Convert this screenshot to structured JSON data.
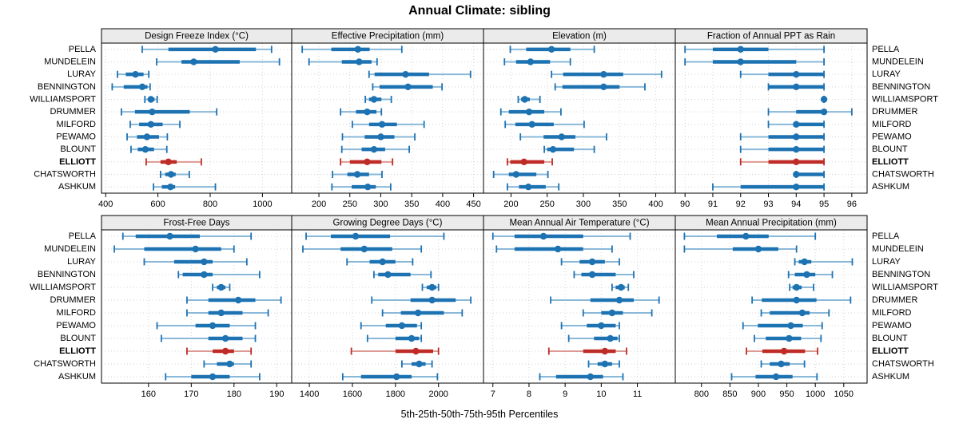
{
  "title": "Annual Climate: sibling",
  "caption": "5th-25th-50th-75th-95th Percentiles",
  "percentile_labels": [
    "5th",
    "25th",
    "50th",
    "75th",
    "95th"
  ],
  "highlight_site": "ELLIOTT",
  "sites": [
    "PELLA",
    "MUNDELEIN",
    "LURAY",
    "BENNINGTON",
    "WILLIAMSPORT",
    "DRUMMER",
    "MILFORD",
    "PEWAMO",
    "BLOUNT",
    "ELLIOTT",
    "CHATSWORTH",
    "ASHKUM"
  ],
  "colors": {
    "blue": "#1d72b2",
    "blue_light": "#8ab8d9",
    "red": "#bf2b26",
    "red_light": "#dd9a93",
    "grid": "#d4d4d4",
    "header_bg": "#ebebeb",
    "border": "#000000"
  },
  "chart_data": [
    {
      "type": "dotplot-percentiles",
      "title": "Design Freeze Index (°C)",
      "xlim": [
        384,
        1112
      ],
      "ticks": [
        400,
        600,
        800,
        1000
      ],
      "values": {
        "PELLA": [
          540,
          640,
          820,
          975,
          1035
        ],
        "MUNDELEIN": [
          595,
          690,
          737,
          913,
          1065
        ],
        "LURAY": [
          445,
          477,
          514,
          545,
          565
        ],
        "BENNINGTON": [
          425,
          469,
          540,
          560,
          570
        ],
        "WILLIAMSPORT": [
          550,
          562,
          573,
          587,
          597
        ],
        "DRUMMER": [
          460,
          512,
          578,
          722,
          825
        ],
        "MILFORD": [
          494,
          528,
          573,
          618,
          684
        ],
        "PEWAMO": [
          482,
          520,
          558,
          604,
          636
        ],
        "BLOUNT": [
          497,
          523,
          552,
          585,
          634
        ],
        "ELLIOTT": [
          555,
          610,
          640,
          672,
          766
        ],
        "CHATSWORTH": [
          610,
          628,
          650,
          668,
          720
        ],
        "ASHKUM": [
          583,
          615,
          648,
          666,
          820
        ]
      }
    },
    {
      "type": "dotplot-percentiles",
      "title": "Effective Precipitation (mm)",
      "xlim": [
        156,
        466
      ],
      "ticks": [
        200,
        250,
        300,
        350,
        400,
        450
      ],
      "values": {
        "PELLA": [
          173,
          220,
          263,
          282,
          334
        ],
        "MUNDELEIN": [
          184,
          237,
          265,
          285,
          294
        ],
        "LURAY": [
          281,
          290,
          340,
          378,
          445
        ],
        "BENNINGTON": [
          287,
          298,
          344,
          384,
          399
        ],
        "WILLIAMSPORT": [
          275,
          281,
          289,
          301,
          317
        ],
        "DRUMMER": [
          235,
          260,
          278,
          293,
          301
        ],
        "MILFORD": [
          254,
          281,
          302,
          326,
          370
        ],
        "PEWAMO": [
          238,
          274,
          300,
          322,
          355
        ],
        "BLOUNT": [
          237,
          269,
          289,
          307,
          346
        ],
        "ELLIOTT": [
          235,
          250,
          278,
          301,
          319
        ],
        "CHATSWORTH": [
          222,
          246,
          262,
          281,
          302
        ],
        "ASHKUM": [
          221,
          253,
          279,
          292,
          316
        ]
      }
    },
    {
      "type": "dotplot-percentiles",
      "title": "Elevation (m)",
      "xlim": [
        162,
        427
      ],
      "ticks": [
        200,
        250,
        300,
        350,
        400
      ],
      "values": {
        "PELLA": [
          199,
          221,
          256,
          282,
          315
        ],
        "MUNDELEIN": [
          191,
          207,
          227,
          254,
          282
        ],
        "LURAY": [
          256,
          272,
          328,
          355,
          408
        ],
        "BENNINGTON": [
          261,
          271,
          328,
          350,
          385
        ],
        "WILLIAMSPORT": [
          210,
          214,
          219,
          226,
          240
        ],
        "DRUMMER": [
          186,
          197,
          225,
          246,
          269
        ],
        "MILFORD": [
          192,
          206,
          229,
          259,
          301
        ],
        "PEWAMO": [
          213,
          245,
          270,
          289,
          332
        ],
        "BLOUNT": [
          246,
          250,
          258,
          287,
          315
        ],
        "ELLIOTT": [
          195,
          199,
          218,
          246,
          257
        ],
        "CHATSWORTH": [
          176,
          197,
          207,
          235,
          251
        ],
        "ASHKUM": [
          195,
          211,
          224,
          248,
          266
        ]
      }
    },
    {
      "type": "dotplot-percentiles",
      "title": "Fraction of Annual PPT as Rain",
      "xlim": [
        89.65,
        96.55
      ],
      "ticks": [
        90,
        91,
        92,
        93,
        94,
        95,
        96
      ],
      "values": {
        "PELLA": [
          90,
          91,
          92,
          93,
          95
        ],
        "MUNDELEIN": [
          90,
          91,
          92,
          94,
          95
        ],
        "LURAY": [
          92,
          93,
          94,
          95,
          95
        ],
        "BENNINGTON": [
          93,
          93,
          94,
          95,
          95
        ],
        "WILLIAMSPORT": [
          95,
          95,
          95,
          95,
          95
        ],
        "DRUMMER": [
          93,
          94,
          95,
          95,
          96
        ],
        "MILFORD": [
          93,
          94,
          94,
          95,
          95
        ],
        "PEWAMO": [
          92,
          93,
          94,
          95,
          95
        ],
        "BLOUNT": [
          92,
          93,
          94,
          95,
          95
        ],
        "ELLIOTT": [
          92,
          93,
          94,
          95,
          95
        ],
        "CHATSWORTH": [
          94,
          94,
          94,
          95,
          95
        ],
        "ASHKUM": [
          91,
          92,
          94,
          95,
          95
        ]
      }
    },
    {
      "type": "dotplot-percentiles",
      "title": "Frost-Free Days",
      "xlim": [
        149,
        193.5
      ],
      "ticks": [
        160,
        170,
        180,
        190
      ],
      "values": {
        "PELLA": [
          154,
          157,
          165,
          172,
          184
        ],
        "MUNDELEIN": [
          152,
          159,
          171,
          177,
          180
        ],
        "LURAY": [
          159,
          166,
          173,
          175,
          183
        ],
        "BENNINGTON": [
          167,
          168,
          173,
          175,
          186
        ],
        "WILLIAMSPORT": [
          175,
          176,
          177,
          178,
          179
        ],
        "DRUMMER": [
          169,
          174,
          181,
          185,
          191
        ],
        "MILFORD": [
          169,
          174,
          177,
          182,
          188
        ],
        "PEWAMO": [
          162,
          171,
          175,
          179,
          185
        ],
        "BLOUNT": [
          163,
          174,
          178,
          182,
          185
        ],
        "ELLIOTT": [
          169,
          175,
          178,
          180,
          184
        ],
        "CHATSWORTH": [
          173,
          176,
          179,
          180,
          184
        ],
        "ASHKUM": [
          164,
          170,
          175,
          179,
          186
        ]
      }
    },
    {
      "type": "dotplot-percentiles",
      "title": "Growing Degree Days (°C)",
      "xlim": [
        1318,
        2209
      ],
      "ticks": [
        1400,
        1600,
        1800,
        2000
      ],
      "values": {
        "PELLA": [
          1385,
          1500,
          1615,
          1775,
          2025
        ],
        "MUNDELEIN": [
          1370,
          1545,
          1655,
          1785,
          1920
        ],
        "LURAY": [
          1575,
          1680,
          1740,
          1800,
          1880
        ],
        "BENNINGTON": [
          1700,
          1720,
          1765,
          1870,
          1965
        ],
        "WILLIAMSPORT": [
          1925,
          1945,
          1970,
          1990,
          2000
        ],
        "DRUMMER": [
          1690,
          1870,
          1970,
          2080,
          2150
        ],
        "MILFORD": [
          1740,
          1825,
          1905,
          2025,
          2110
        ],
        "PEWAMO": [
          1640,
          1755,
          1830,
          1900,
          1920
        ],
        "BLOUNT": [
          1670,
          1800,
          1875,
          1910,
          1920
        ],
        "ELLIOTT": [
          1595,
          1800,
          1895,
          1975,
          2000
        ],
        "CHATSWORTH": [
          1830,
          1875,
          1910,
          1940,
          1970
        ],
        "ASHKUM": [
          1555,
          1640,
          1805,
          1875,
          1995
        ]
      }
    },
    {
      "type": "dotplot-percentiles",
      "title": "Mean Annual Air Temperature (°C)",
      "xlim": [
        6.74,
        12.05
      ],
      "ticks": [
        7,
        8,
        9,
        10,
        11
      ],
      "values": {
        "PELLA": [
          7.0,
          7.6,
          8.4,
          9.5,
          10.8
        ],
        "MUNDELEIN": [
          7.1,
          7.6,
          8.8,
          9.5,
          10.3
        ],
        "LURAY": [
          8.9,
          9.4,
          9.75,
          10.1,
          10.5
        ],
        "BENNINGTON": [
          9.25,
          9.45,
          9.75,
          10.4,
          10.9
        ],
        "WILLIAMSPORT": [
          10.3,
          10.4,
          10.55,
          10.65,
          10.75
        ],
        "DRUMMER": [
          8.6,
          9.7,
          10.5,
          10.9,
          11.6
        ],
        "MILFORD": [
          9.5,
          10.0,
          10.3,
          10.6,
          11.4
        ],
        "PEWAMO": [
          8.9,
          9.6,
          10.0,
          10.4,
          10.5
        ],
        "BLOUNT": [
          9.1,
          9.8,
          10.25,
          10.45,
          10.5
        ],
        "ELLIOTT": [
          8.55,
          9.5,
          10.1,
          10.4,
          10.7
        ],
        "CHATSWORTH": [
          9.65,
          9.9,
          10.1,
          10.3,
          10.5
        ],
        "ASHKUM": [
          8.3,
          8.75,
          9.7,
          10.05,
          10.6
        ]
      }
    },
    {
      "type": "dotplot-percentiles",
      "title": "Mean Annual Precipitation (mm)",
      "xlim": [
        754,
        1091
      ],
      "ticks": [
        800,
        850,
        900,
        950,
        1000,
        1050
      ],
      "values": {
        "PELLA": [
          770,
          827,
          878,
          918,
          1000
        ],
        "MUNDELEIN": [
          770,
          855,
          900,
          935,
          967
        ],
        "LURAY": [
          964,
          971,
          981,
          993,
          1065
        ],
        "BENNINGTON": [
          953,
          964,
          985,
          1000,
          1030
        ],
        "WILLIAMSPORT": [
          955,
          960,
          967,
          976,
          997
        ],
        "DRUMMER": [
          889,
          906,
          967,
          1002,
          1062
        ],
        "MILFORD": [
          905,
          920,
          977,
          990,
          1024
        ],
        "PEWAMO": [
          873,
          899,
          957,
          978,
          1012
        ],
        "BLOUNT": [
          893,
          913,
          954,
          975,
          1010
        ],
        "ELLIOTT": [
          879,
          907,
          945,
          982,
          1004
        ],
        "CHATSWORTH": [
          905,
          920,
          940,
          955,
          981
        ],
        "ASHKUM": [
          853,
          895,
          931,
          960,
          1003
        ]
      }
    }
  ]
}
